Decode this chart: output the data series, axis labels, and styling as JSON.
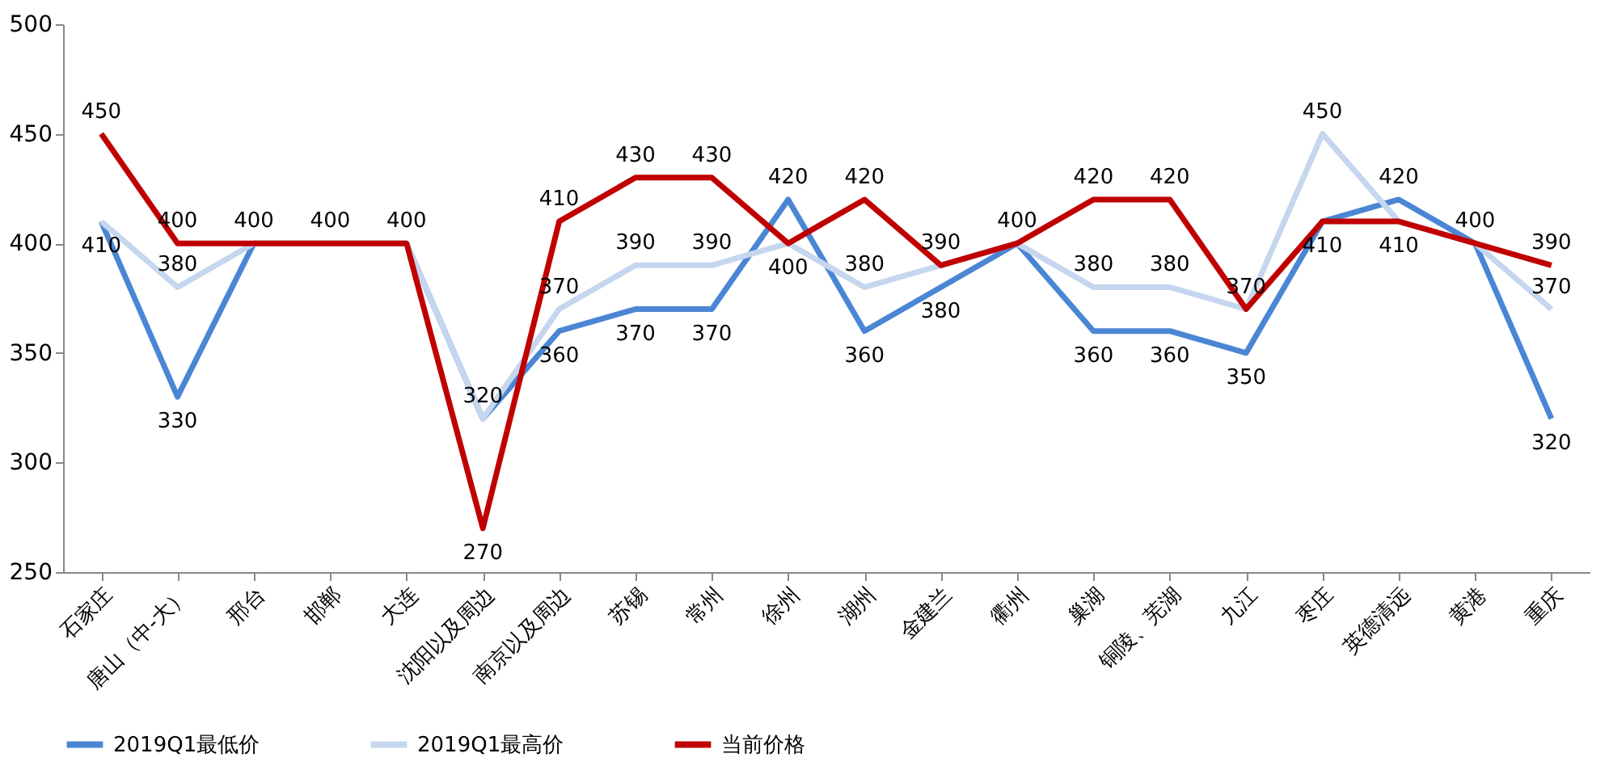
{
  "chart_data": {
    "type": "line",
    "categories": [
      "石家庄",
      "唐山（中-大）",
      "邢台",
      "邯郸",
      "大连",
      "沈阳以及周边",
      "南京以及周边",
      "苏锡",
      "常州",
      "徐州",
      "湖州",
      "金建兰",
      "衢州",
      "巢湖",
      "铜陵、芜湖",
      "九江",
      "枣庄",
      "英德清远",
      "黄港",
      "重庆"
    ],
    "series": [
      {
        "name": "2019Q1最低价",
        "color": "#4a86d4",
        "values": [
          410,
          330,
          400,
          400,
          400,
          320,
          360,
          370,
          370,
          420,
          360,
          380,
          400,
          360,
          360,
          350,
          410,
          420,
          400,
          320
        ],
        "value_labels": [
          null,
          "330",
          null,
          null,
          null,
          null,
          "360",
          "370",
          "370",
          "420",
          "360",
          "380",
          null,
          "360",
          "360",
          "350",
          null,
          "420",
          null,
          "320"
        ]
      },
      {
        "name": "2019Q1最高价",
        "color": "#c5d6ee",
        "values": [
          410,
          380,
          400,
          400,
          400,
          320,
          370,
          390,
          390,
          400,
          380,
          390,
          400,
          380,
          380,
          370,
          450,
          410,
          400,
          370
        ],
        "value_labels": [
          "410",
          "380",
          null,
          null,
          null,
          "320",
          "370",
          "390",
          "390",
          null,
          "380",
          null,
          null,
          "380",
          "380",
          null,
          "450",
          null,
          null,
          "370"
        ]
      },
      {
        "name": "当前价格",
        "color": "#c00000",
        "values": [
          450,
          400,
          400,
          400,
          400,
          270,
          410,
          430,
          430,
          400,
          420,
          390,
          400,
          420,
          420,
          370,
          410,
          410,
          400,
          390
        ],
        "value_labels": [
          "450",
          "400",
          "400",
          "400",
          "400",
          "270",
          "410",
          "430",
          "430",
          "400",
          "420",
          "390",
          "400",
          "420",
          "420",
          "370",
          "410",
          "410",
          "400",
          "390"
        ]
      }
    ],
    "ylim": [
      250,
      500
    ],
    "yticks": [
      250,
      300,
      350,
      400,
      450,
      500
    ],
    "grid": false,
    "legend": "bottom",
    "marker": "none",
    "line_style": "solid"
  }
}
